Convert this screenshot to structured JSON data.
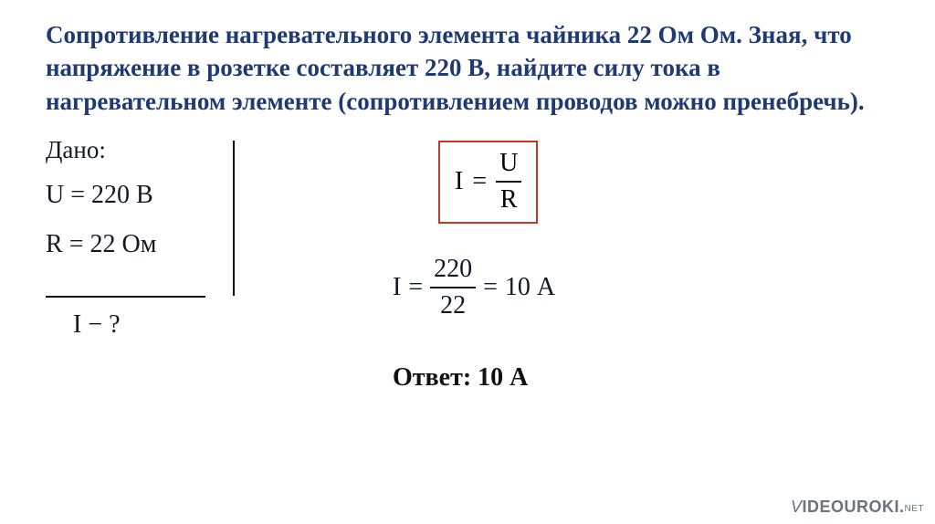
{
  "problem": {
    "text": "Сопротивление нагревательного элемента чайника 22 Ом Ом. Зная, что напряжение в розетке составляет 220 В, найдите силу тока в нагревательном элементе (сопротивлением проводов можно пренебречь).",
    "color": "#1f3a73",
    "fontsize": 27,
    "fontweight": "bold"
  },
  "given": {
    "label": "Дано:",
    "voltage": {
      "lhs": "U",
      "eq": "=",
      "rhs": "220 В"
    },
    "resistance": {
      "lhs": "R",
      "eq": "=",
      "rhs": "22 Ом"
    },
    "find": {
      "lhs": "I",
      "sep": "−",
      "rhs": "?"
    }
  },
  "formula": {
    "lhs": "I",
    "eq": "=",
    "num": "U",
    "den": "R",
    "box_border_color": "#c0392b"
  },
  "calc": {
    "lhs": "I",
    "eq": "=",
    "num": "220",
    "den": "22",
    "eq2": "=",
    "result": "10 А"
  },
  "answer": {
    "label": "Ответ:",
    "value": "10 А"
  },
  "watermark": {
    "v": "V",
    "rest": "IDEOUROKI",
    "dot": ".",
    "net": "NET"
  },
  "style": {
    "page_bg": "#ffffff",
    "text_color": "#111827",
    "rule_color": "#111111"
  }
}
